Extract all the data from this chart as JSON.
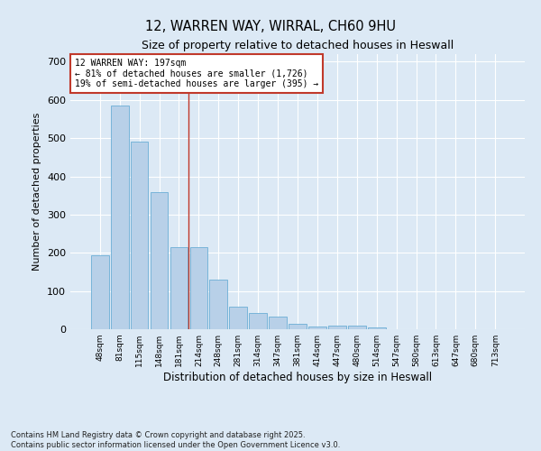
{
  "title_line1": "12, WARREN WAY, WIRRAL, CH60 9HU",
  "title_line2": "Size of property relative to detached houses in Heswall",
  "xlabel": "Distribution of detached houses by size in Heswall",
  "ylabel": "Number of detached properties",
  "categories": [
    "48sqm",
    "81sqm",
    "115sqm",
    "148sqm",
    "181sqm",
    "214sqm",
    "248sqm",
    "281sqm",
    "314sqm",
    "347sqm",
    "381sqm",
    "414sqm",
    "447sqm",
    "480sqm",
    "514sqm",
    "547sqm",
    "580sqm",
    "613sqm",
    "647sqm",
    "680sqm",
    "713sqm"
  ],
  "values": [
    193,
    585,
    490,
    358,
    216,
    216,
    130,
    60,
    43,
    33,
    15,
    6,
    10,
    10,
    5,
    0,
    0,
    0,
    0,
    0,
    0
  ],
  "bar_color": "#b8d0e8",
  "bar_edge_color": "#6baed6",
  "background_color": "#dce9f5",
  "grid_color": "#ffffff",
  "vline_color": "#c0392b",
  "annotation_text": "12 WARREN WAY: 197sqm\n← 81% of detached houses are smaller (1,726)\n19% of semi-detached houses are larger (395) →",
  "annotation_box_color": "#c0392b",
  "ylim": [
    0,
    720
  ],
  "yticks": [
    0,
    100,
    200,
    300,
    400,
    500,
    600,
    700
  ],
  "footnote1": "Contains HM Land Registry data © Crown copyright and database right 2025.",
  "footnote2": "Contains public sector information licensed under the Open Government Licence v3.0."
}
